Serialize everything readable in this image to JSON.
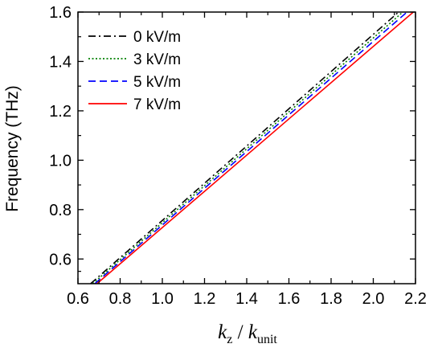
{
  "chart_data": {
    "type": "line",
    "title": "",
    "xlabel": {
      "main": "k",
      "main_sub": "z",
      "sep": " / ",
      "denom": "k",
      "denom_sub": "unit"
    },
    "ylabel": "Frequency (THz)",
    "xlim": [
      0.6,
      2.2
    ],
    "ylim": [
      0.5,
      1.6
    ],
    "xticks": [
      0.6,
      0.8,
      1.0,
      1.2,
      1.4,
      1.6,
      1.8,
      2.0,
      2.2
    ],
    "xtick_labels": [
      "0.6",
      "0.8",
      "1.0",
      "1.2",
      "1.4",
      "1.6",
      "1.8",
      "2.0",
      "2.2"
    ],
    "yticks": [
      0.6,
      0.8,
      1.0,
      1.2,
      1.4,
      1.6
    ],
    "ytick_labels": [
      "0.6",
      "0.8",
      "1.0",
      "1.2",
      "1.4",
      "1.6"
    ],
    "grid": false,
    "legend_position": "top-left",
    "series": [
      {
        "name": "0 kV/m",
        "color": "#000000",
        "dash": "dashdot",
        "x": [
          0.66,
          2.12
        ],
        "y": [
          0.5,
          1.6
        ]
      },
      {
        "name": "3 kV/m",
        "color": "#008000",
        "dash": "dotted",
        "x": [
          0.67,
          2.14
        ],
        "y": [
          0.5,
          1.6
        ]
      },
      {
        "name": "5 kV/m",
        "color": "#0000ff",
        "dash": "dashed",
        "x": [
          0.68,
          2.16
        ],
        "y": [
          0.5,
          1.6
        ]
      },
      {
        "name": "7 kV/m",
        "color": "#ff0000",
        "dash": "solid",
        "x": [
          0.69,
          2.19
        ],
        "y": [
          0.5,
          1.6
        ]
      }
    ]
  }
}
